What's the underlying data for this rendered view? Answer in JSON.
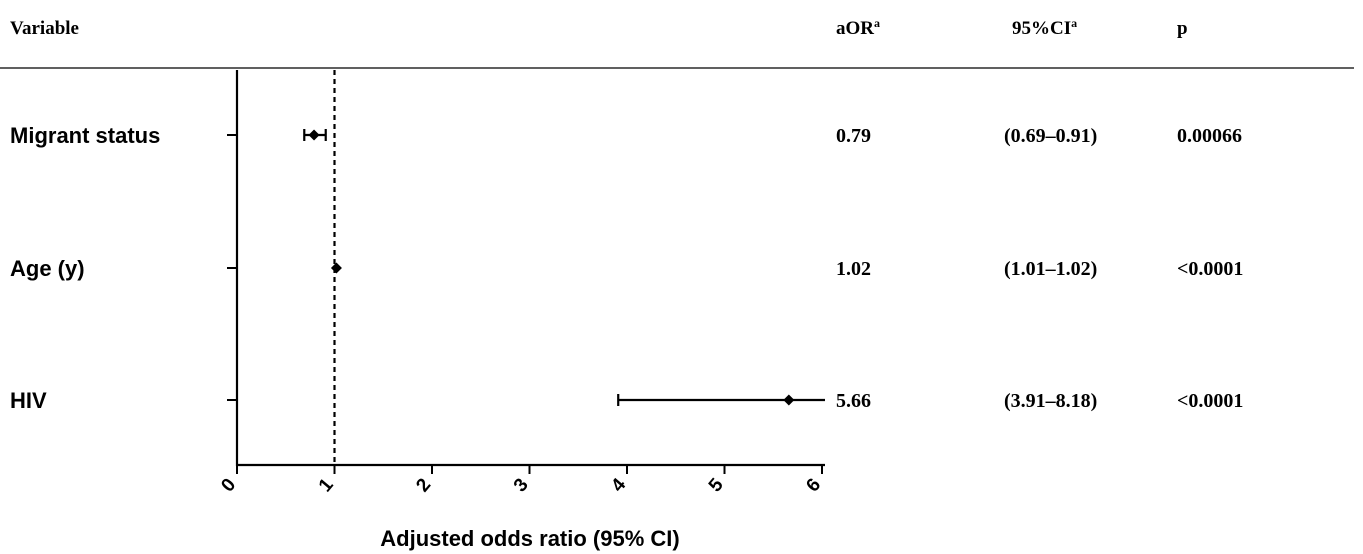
{
  "table": {
    "headers": {
      "variable": "Variable",
      "aor": "aOR",
      "aor_sup": "a",
      "ci": "95%CI",
      "ci_sup": "a",
      "p": "p"
    },
    "rows": [
      {
        "variable": "Migrant status",
        "aor": "0.79",
        "ci": "(0.69–0.91)",
        "p": "0.00066"
      },
      {
        "variable": "Age (y)",
        "aor": "1.02",
        "ci": "(1.01–1.02)",
        "p": "<0.0001"
      },
      {
        "variable": "HIV",
        "aor": "5.66",
        "ci": "(3.91–8.18)",
        "p": "<0.0001"
      }
    ]
  },
  "chart_data": {
    "type": "forest",
    "xlabel": "Adjusted odds ratio (95% CI)",
    "xlim": [
      0,
      6
    ],
    "xticks": [
      "0",
      "1",
      "2",
      "3",
      "4",
      "5",
      "6"
    ],
    "reference_line": 1,
    "categories": [
      "Migrant status",
      "Age (y)",
      "HIV"
    ],
    "estimates": [
      0.79,
      1.02,
      5.66
    ],
    "ci_lower": [
      0.69,
      1.01,
      3.91
    ],
    "ci_upper": [
      0.91,
      1.02,
      8.18
    ],
    "colors": {
      "ink": "#000000"
    }
  }
}
